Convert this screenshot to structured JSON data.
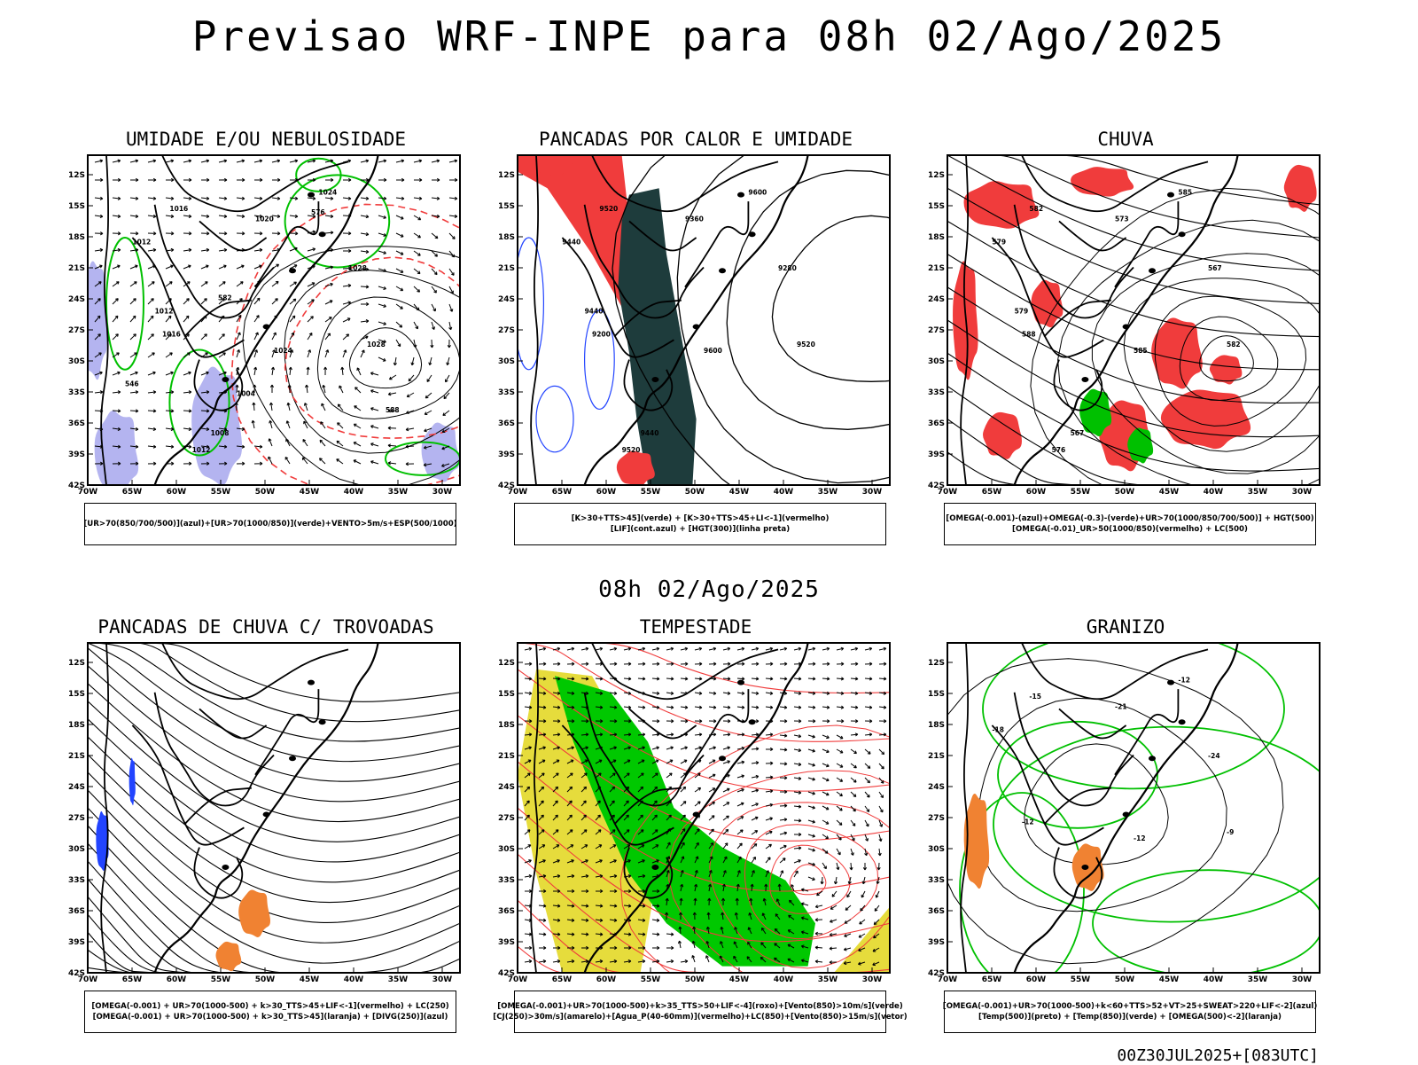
{
  "main_title": "Previsao WRF-INPE  para 08h 02/Ago/2025",
  "mid_title": "08h 02/Ago/2025",
  "footer": "00Z30JUL2025+[083UTC]",
  "lat_ticks": [
    "12S",
    "15S",
    "18S",
    "21S",
    "24S",
    "27S",
    "30S",
    "33S",
    "36S",
    "39S",
    "42S"
  ],
  "lon_ticks": [
    "70W",
    "65W",
    "60W",
    "55W",
    "50W",
    "45W",
    "40W",
    "35W",
    "30W"
  ],
  "panels": [
    {
      "title": "UMIDADE E/OU NEBULOSIDADE",
      "legend": [
        "[UR>70(850/700/500)](azul)+[UR>70(1000/850)](verde)+VENTO>5m/s+ESP(500/1000)"
      ],
      "labels": [
        "1024",
        "1016",
        "1012",
        "1020",
        "1028",
        "1016",
        "1024",
        "1028",
        "1012",
        "1012",
        "1008",
        "1004",
        "576",
        "582",
        "588",
        "546"
      ]
    },
    {
      "title": "PANCADAS POR CALOR E UMIDADE",
      "legend": [
        "[K>30+TTS>45](verde) + [K>30+TTS>45+LI<-1](vermelho)",
        "[LIF](cont.azul) + [HGT(300)](linha preta)"
      ],
      "labels": [
        "9600",
        "9520",
        "9440",
        "9360",
        "9280",
        "9200",
        "9600",
        "9520",
        "9440",
        "9520",
        "9440"
      ]
    },
    {
      "title": "CHUVA",
      "legend": [
        "[OMEGA(-0.001)-(azul)+OMEGA(-0.3)-(verde)+UR>70(1000/850/700/500)] + HGT(500)",
        "[OMEGA(-0.01)_UR>50(1000/850)(vermelho) + LC(500)"
      ],
      "labels": [
        "585",
        "582",
        "579",
        "573",
        "567",
        "588",
        "585",
        "582",
        "579",
        "576",
        "567"
      ]
    },
    {
      "title": "PANCADAS DE CHUVA C/ TROVOADAS",
      "legend": [
        "[OMEGA(-0.001) + UR>70(1000-500) + k>30_TTS>45+LIF<-1](vermelho) + LC(250)",
        "[OMEGA(-0.001) + UR>70(1000-500) + k>30_TTS>45](laranja) + [DIVG(250)](azul)"
      ],
      "labels": []
    },
    {
      "title": "TEMPESTADE",
      "legend": [
        "[OMEGA(-0.001)+UR>70(1000-500)+k>35_TTS>50+LIF<-4](roxo)+[Vento(850)>10m/s](verde)",
        "[CJ(250)>30m/s](amarelo)+[Agua_P(40-60mm)](vermelho)+LC(850)+[Vento(850)>15m/s](vetor)"
      ],
      "labels": []
    },
    {
      "title": "GRANIZO",
      "legend": [
        "[OMEGA(-0.001)+UR>70(1000-500)+k<60+TTS>52+VT>25+SWEAT>220+LIF<-2](azul)",
        "[Temp(500)](preto) + [Temp(850)](verde) + [OMEGA(500)<-2](laranja)"
      ],
      "labels": [
        "-12",
        "-15",
        "-18",
        "-21",
        "-24",
        "-12",
        "-12",
        "-9"
      ]
    }
  ],
  "colors": {
    "red": "#f03c3c",
    "green": "#00c000",
    "blue": "#2244ff",
    "lavender": "#b4b4f0",
    "darkteal": "#1e3c3c",
    "yellow": "#e6dc3c",
    "limegreen": "#00c800",
    "orange": "#f08232"
  }
}
